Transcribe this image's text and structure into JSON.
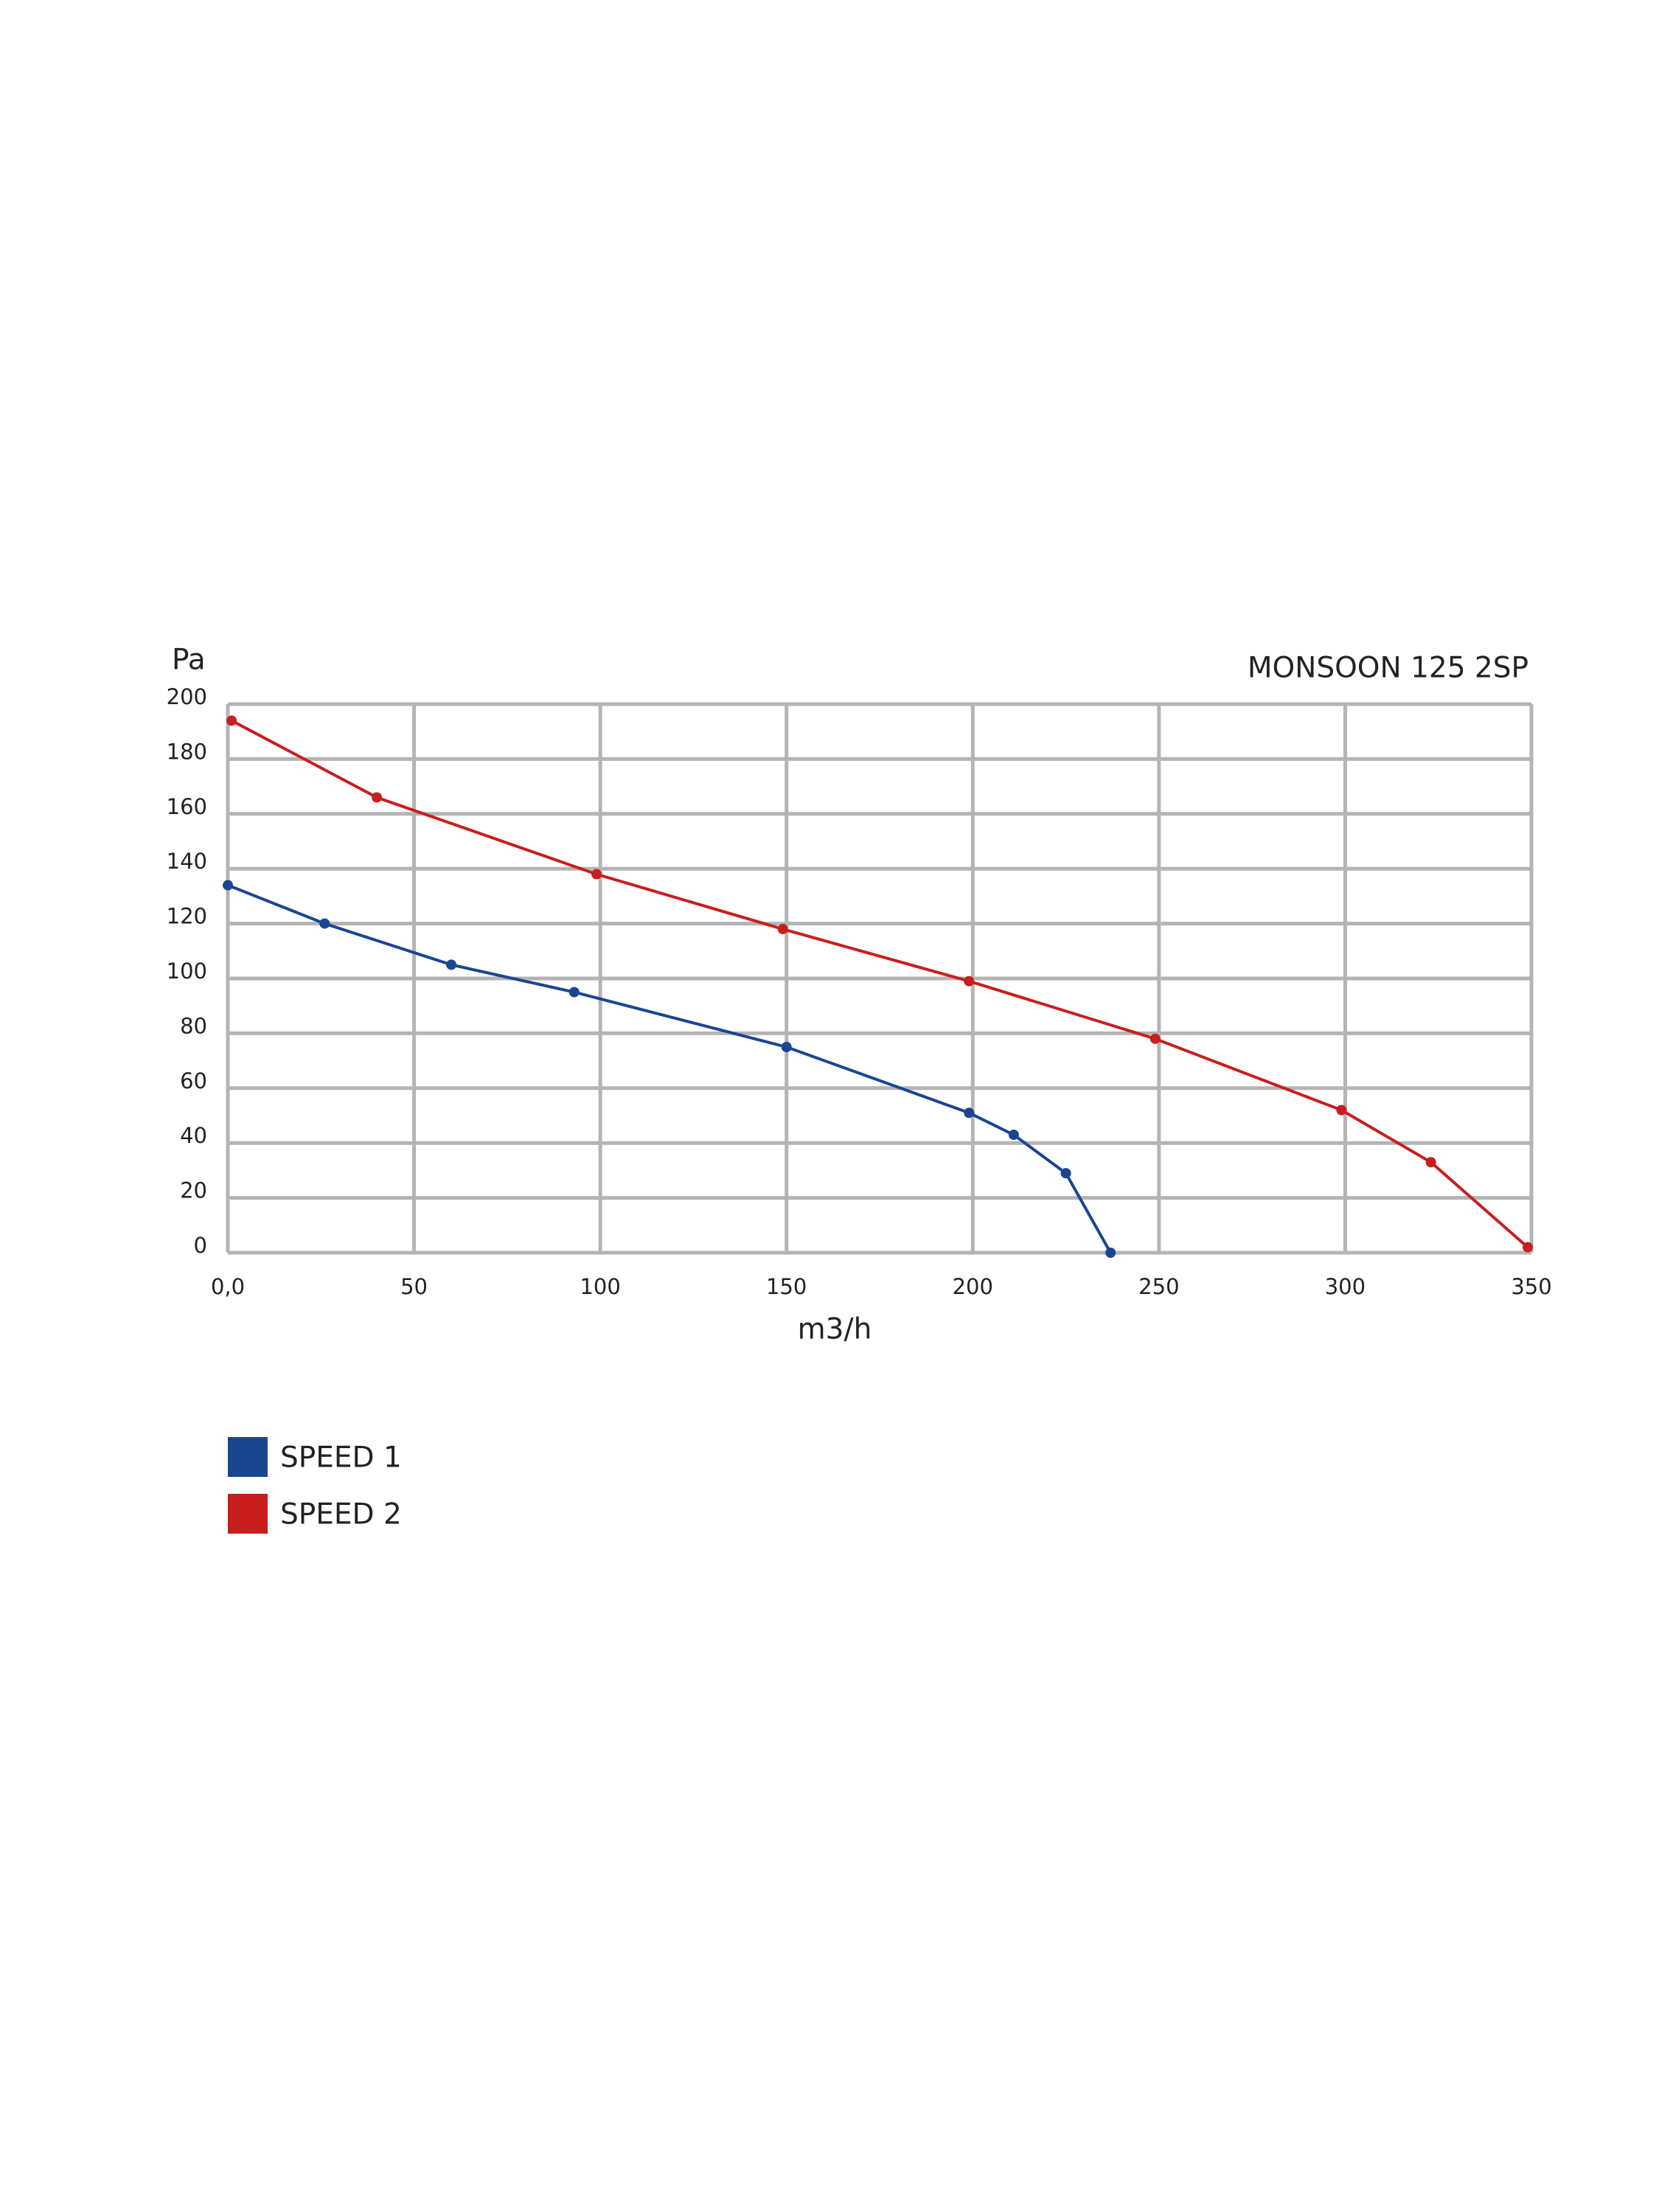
{
  "chart_data": {
    "type": "line",
    "title": "MONSOON 125 2SP",
    "y_label": "Pa",
    "x_label": "m3/h",
    "xlim": [
      0,
      350
    ],
    "ylim": [
      0,
      200
    ],
    "xticks": [
      {
        "value": 0,
        "label": "0,0"
      },
      50,
      100,
      150,
      200,
      250,
      300,
      350
    ],
    "yticks": [
      0,
      20,
      40,
      60,
      80,
      100,
      120,
      140,
      160,
      180,
      200
    ],
    "grid": true,
    "series": [
      {
        "name": "SPEED 1",
        "color": "#1a4690",
        "x": [
          0,
          26,
          60,
          93,
          150,
          199,
          211,
          225,
          237
        ],
        "values": [
          134,
          120,
          105,
          95,
          75,
          51,
          43,
          29,
          0
        ]
      },
      {
        "name": "SPEED 2",
        "color": "#c81e1e",
        "x": [
          1,
          40,
          99,
          149,
          199,
          249,
          299,
          323,
          349
        ],
        "values": [
          194,
          166,
          138,
          118,
          99,
          78,
          52,
          33,
          2
        ]
      }
    ]
  }
}
